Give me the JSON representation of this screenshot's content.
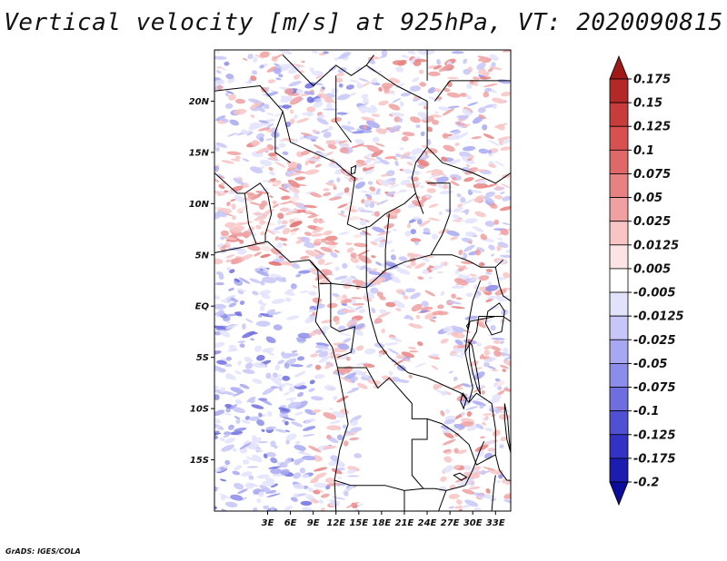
{
  "chart_data": {
    "type": "heatmap",
    "title": "Vertical velocity [m/s] at 925hPa, VT: 2020090815",
    "variable": "Vertical velocity",
    "units": "m/s",
    "level": "925hPa",
    "valid_time": "2020090815",
    "lon_range": [
      -4,
      35
    ],
    "lat_range": [
      -20,
      25
    ],
    "x_ticks": [
      "3E",
      "6E",
      "9E",
      "12E",
      "15E",
      "18E",
      "21E",
      "24E",
      "27E",
      "30E",
      "33E"
    ],
    "x_tick_values": [
      3,
      6,
      9,
      12,
      15,
      18,
      21,
      24,
      27,
      30,
      33
    ],
    "y_ticks": [
      "20N",
      "15N",
      "10N",
      "5N",
      "EQ",
      "5S",
      "10S",
      "15S"
    ],
    "y_tick_values": [
      20,
      15,
      10,
      5,
      0,
      -5,
      -10,
      -15
    ],
    "colorbar": {
      "labels": [
        "0.175",
        "0.15",
        "0.125",
        "0.1",
        "0.075",
        "0.05",
        "0.025",
        "0.0125",
        "0.005",
        "-0.005",
        "-0.0125",
        "-0.025",
        "-0.05",
        "-0.075",
        "-0.1",
        "-0.125",
        "-0.175",
        "-0.2"
      ],
      "colors": [
        "#a01818",
        "#b42828",
        "#c83c3c",
        "#d85050",
        "#e06868",
        "#e88282",
        "#f0a0a0",
        "#f8c4c4",
        "#fce4e4",
        "#ffffff",
        "#e2e2fc",
        "#c6c6f8",
        "#a8a8f2",
        "#8c8cea",
        "#6e6ee0",
        "#5050d4",
        "#3232c4",
        "#1c1cb0",
        "#0c0c9c"
      ]
    }
  },
  "footer": "GrADS: IGES/COLA"
}
